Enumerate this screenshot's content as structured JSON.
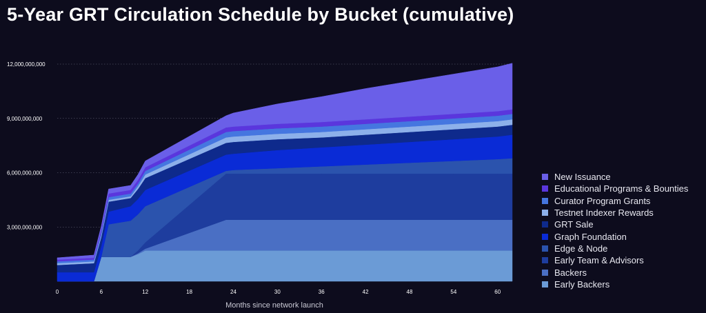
{
  "chart_data": {
    "type": "area",
    "stacked": true,
    "title": "5-Year GRT Circulation Schedule by Bucket (cumulative)",
    "xlabel": "Months since network launch",
    "ylabel": "",
    "xlim": [
      0,
      62
    ],
    "ylim": [
      0,
      12000000000
    ],
    "x_ticks": [
      0,
      6,
      12,
      18,
      24,
      30,
      36,
      42,
      48,
      54,
      60
    ],
    "x_tick_labels": [
      "0",
      "6",
      "12",
      "18",
      "24",
      "30",
      "36",
      "42",
      "48",
      "54",
      "60"
    ],
    "y_ticks": [
      3000000000,
      6000000000,
      9000000000,
      12000000000
    ],
    "y_tick_labels": [
      "3,000,000,000",
      "6,000,000,000",
      "9,000,000,000",
      "12,000,000,000"
    ],
    "grid": "horizontal-dotted",
    "legend": "right",
    "x": [
      0,
      5,
      6,
      7,
      10,
      11,
      12,
      23,
      24,
      30,
      36,
      42,
      48,
      54,
      60,
      62
    ],
    "series": [
      {
        "name": "Early Backers",
        "color": "#6b9bd6",
        "values": [
          0,
          0,
          1350000000,
          1350000000,
          1350000000,
          1500000000,
          1700000000,
          1700000000,
          1700000000,
          1700000000,
          1700000000,
          1700000000,
          1700000000,
          1700000000,
          1700000000,
          1700000000
        ]
      },
      {
        "name": "Backers",
        "color": "#4a6fc4",
        "values": [
          0,
          0,
          0,
          0,
          0,
          50000000,
          100000000,
          1700000000,
          1700000000,
          1700000000,
          1700000000,
          1700000000,
          1700000000,
          1700000000,
          1700000000,
          1700000000
        ]
      },
      {
        "name": "Early Team & Advisors",
        "color": "#1e3d9e",
        "values": [
          0,
          0,
          0,
          0,
          0,
          150000000,
          350000000,
          2550000000,
          2550000000,
          2550000000,
          2550000000,
          2550000000,
          2550000000,
          2550000000,
          2550000000,
          2550000000
        ]
      },
      {
        "name": "Edge & Node",
        "color": "#2b53ad",
        "values": [
          0,
          0,
          0,
          1800000000,
          2000000000,
          2000000000,
          2000000000,
          150000000,
          200000000,
          300000000,
          400000000,
          500000000,
          600000000,
          700000000,
          800000000,
          850000000
        ]
      },
      {
        "name": "Graph Foundation",
        "color": "#0a2bd6",
        "values": [
          500000000,
          500000000,
          600000000,
          700000000,
          800000000,
          850000000,
          900000000,
          900000000,
          900000000,
          1000000000,
          1050000000,
          1100000000,
          1150000000,
          1200000000,
          1250000000,
          1300000000
        ]
      },
      {
        "name": "GRT Sale",
        "color": "#0e2a8c",
        "values": [
          400000000,
          500000000,
          500000000,
          550000000,
          450000000,
          550000000,
          650000000,
          650000000,
          650000000,
          600000000,
          550000000,
          550000000,
          550000000,
          550000000,
          550000000,
          550000000
        ]
      },
      {
        "name": "Testnet Indexer Rewards",
        "color": "#8db0ea",
        "values": [
          100000000,
          100000000,
          100000000,
          100000000,
          100000000,
          150000000,
          200000000,
          300000000,
          300000000,
          300000000,
          300000000,
          300000000,
          300000000,
          300000000,
          300000000,
          300000000
        ]
      },
      {
        "name": "Curator Program Grants",
        "color": "#4576e0",
        "values": [
          100000000,
          100000000,
          150000000,
          150000000,
          150000000,
          150000000,
          200000000,
          300000000,
          300000000,
          300000000,
          300000000,
          300000000,
          300000000,
          300000000,
          300000000,
          300000000
        ]
      },
      {
        "name": "Educational Programs & Bounties",
        "color": "#5a36dd",
        "values": [
          100000000,
          100000000,
          150000000,
          200000000,
          200000000,
          200000000,
          200000000,
          250000000,
          250000000,
          250000000,
          250000000,
          250000000,
          250000000,
          250000000,
          250000000,
          250000000
        ]
      },
      {
        "name": "New Issuance",
        "color": "#6a5fe8",
        "values": [
          100000000,
          150000000,
          200000000,
          250000000,
          250000000,
          300000000,
          350000000,
          650000000,
          750000000,
          1100000000,
          1400000000,
          1700000000,
          1950000000,
          2200000000,
          2450000000,
          2550000000
        ]
      }
    ]
  }
}
